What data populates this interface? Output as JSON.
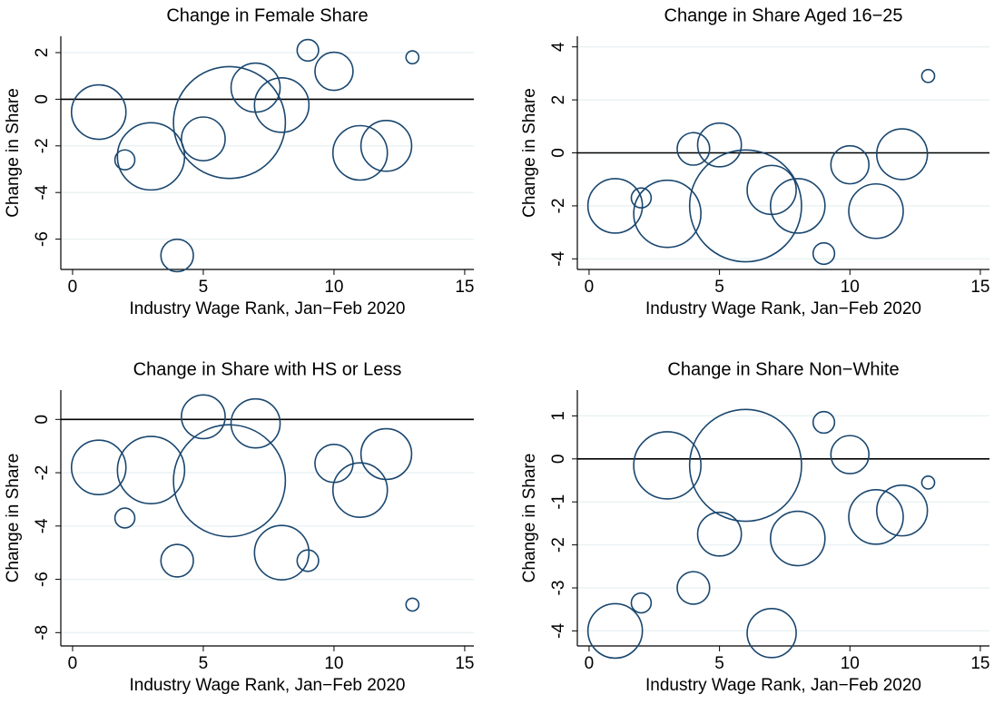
{
  "chart_data": [
    {
      "type": "scatter",
      "title": "Change in Female Share",
      "xlabel": "Industry Wage Rank, Jan−Feb 2020",
      "ylabel": "Change in Share",
      "x": [
        1,
        2,
        3,
        4,
        5,
        6,
        7,
        8,
        9,
        10,
        11,
        12,
        13
      ],
      "values": [
        -0.55,
        -2.6,
        -2.45,
        -6.7,
        -1.7,
        -1.0,
        0.5,
        -0.25,
        2.1,
        1.2,
        -2.3,
        -2.0,
        1.8
      ],
      "sizes": [
        9,
        1.2,
        13.7,
        3.2,
        5.8,
        38,
        7.3,
        9,
        1.4,
        4.4,
        9,
        7.8,
        0.5
      ],
      "xlim": [
        -0.45,
        15.35
      ],
      "ylim": [
        -7.3,
        2.7
      ],
      "xticks": [
        0,
        5,
        10,
        15
      ],
      "yticks": [
        -6,
        -4,
        -2,
        0,
        2
      ],
      "grid": true,
      "hline": 0,
      "color": "#1a476f"
    },
    {
      "type": "scatter",
      "title": "Change in Share Aged 16−25",
      "xlabel": "Industry Wage Rank, Jan−Feb 2020",
      "ylabel": "Change in Share",
      "x": [
        1,
        2,
        3,
        4,
        5,
        6,
        7,
        8,
        9,
        10,
        11,
        12,
        13
      ],
      "values": [
        -2.0,
        -1.7,
        -2.3,
        0.15,
        0.3,
        -2.0,
        -1.4,
        -2.0,
        -3.8,
        -0.45,
        -2.2,
        -0.05,
        2.9
      ],
      "sizes": [
        9,
        1.2,
        13.7,
        3.2,
        5.8,
        38,
        7.3,
        9,
        1.4,
        4.4,
        9,
        7.8,
        0.5
      ],
      "xlim": [
        -0.45,
        15.35
      ],
      "ylim": [
        -4.4,
        4.4
      ],
      "xticks": [
        0,
        5,
        10,
        15
      ],
      "yticks": [
        -4,
        -2,
        0,
        2,
        4
      ],
      "grid": true,
      "hline": 0,
      "color": "#1a476f"
    },
    {
      "type": "scatter",
      "title": "Change in Share with HS or Less",
      "xlabel": "Industry Wage Rank, Jan−Feb 2020",
      "ylabel": "Change in Share",
      "x": [
        1,
        2,
        3,
        4,
        5,
        6,
        7,
        8,
        9,
        10,
        11,
        12,
        13
      ],
      "values": [
        -1.8,
        -3.7,
        -1.9,
        -5.3,
        0.1,
        -2.3,
        -0.15,
        -5.0,
        -5.3,
        -1.65,
        -2.65,
        -1.3,
        -6.95
      ],
      "sizes": [
        9,
        1.2,
        13.7,
        3.2,
        5.8,
        38,
        7.3,
        9,
        1.4,
        4.4,
        9,
        7.8,
        0.5
      ],
      "xlim": [
        -0.45,
        15.35
      ],
      "ylim": [
        -8.5,
        1.1
      ],
      "xticks": [
        0,
        5,
        10,
        15
      ],
      "yticks": [
        -8,
        -6,
        -4,
        -2,
        0
      ],
      "grid": true,
      "hline": 0,
      "color": "#1a476f"
    },
    {
      "type": "scatter",
      "title": "Change in Share Non−White",
      "xlabel": "Industry Wage Rank, Jan−Feb 2020",
      "ylabel": "Change in Share",
      "x": [
        1,
        2,
        3,
        4,
        5,
        6,
        7,
        8,
        9,
        10,
        11,
        12,
        13
      ],
      "values": [
        -4.0,
        -3.35,
        -0.15,
        -3.0,
        -1.75,
        -0.15,
        -4.05,
        -1.85,
        0.85,
        0.1,
        -1.35,
        -1.2,
        -0.55
      ],
      "sizes": [
        9,
        1.2,
        13.7,
        3.2,
        5.8,
        38,
        7.3,
        9,
        1.4,
        4.4,
        9,
        7.8,
        0.5
      ],
      "xlim": [
        -0.45,
        15.35
      ],
      "ylim": [
        -4.35,
        1.6
      ],
      "xticks": [
        0,
        5,
        10,
        15
      ],
      "yticks": [
        -4,
        -3,
        -2,
        -1,
        0,
        1
      ],
      "grid": true,
      "hline": 0,
      "color": "#1a476f"
    }
  ]
}
